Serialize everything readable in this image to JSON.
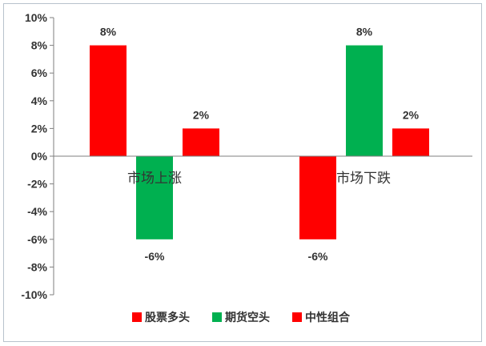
{
  "chart_data": {
    "type": "bar",
    "categories": [
      "市场上涨",
      "市场下跌"
    ],
    "series": [
      {
        "name": "股票多头",
        "values": [
          8,
          -6
        ],
        "color": "#ff0000"
      },
      {
        "name": "期货空头",
        "values": [
          -6,
          8
        ],
        "color": "#00b050"
      },
      {
        "name": "中性组合",
        "values": [
          2,
          2
        ],
        "color": "#ff0000"
      }
    ],
    "data_labels": [
      [
        "8%",
        "-6%"
      ],
      [
        "-6%",
        "8%"
      ],
      [
        "2%",
        "2%"
      ]
    ],
    "y_ticks": [
      "10%",
      "8%",
      "6%",
      "4%",
      "2%",
      "0%",
      "-2%",
      "-4%",
      "-6%",
      "-8%",
      "-10%"
    ],
    "ylim": [
      -10,
      10
    ],
    "ytick_step": 2,
    "title": "",
    "xlabel": "",
    "ylabel": "",
    "grid": false,
    "legend_position": "bottom"
  }
}
